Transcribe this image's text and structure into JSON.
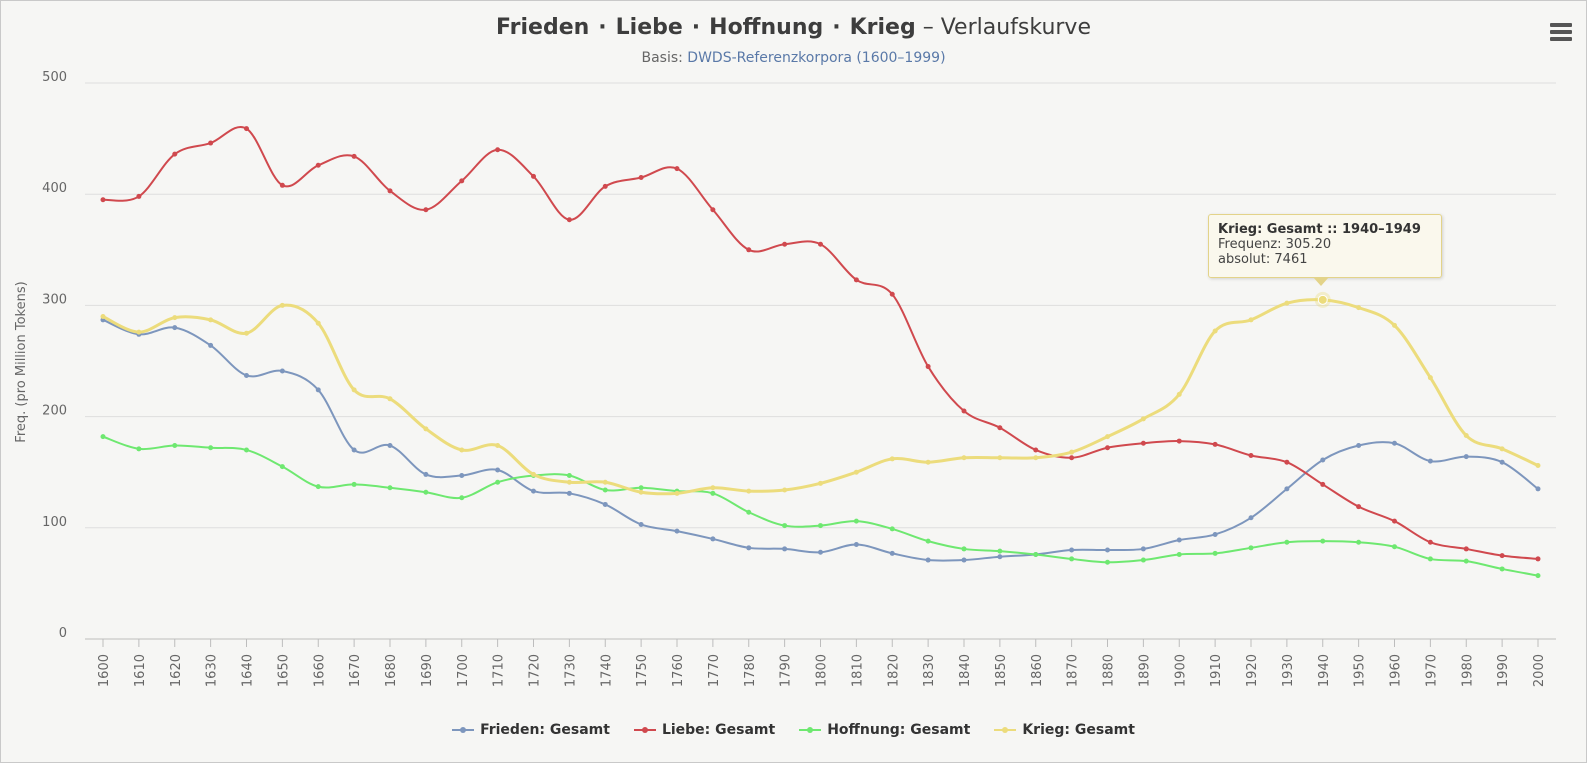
{
  "title": {
    "w1": "Frieden",
    "w2": "Liebe",
    "w3": "Hoffnung",
    "w4": "Krieg",
    "dot": "·",
    "suffix": "– Verlaufskurve"
  },
  "subtitle": {
    "prefix": "Basis: ",
    "link": "DWDS-Referenzkorpora (1600–1999)"
  },
  "menu_icon": "hamburger-menu-icon",
  "tooltip": {
    "header": "Krieg: Gesamt :: 1940–1949",
    "line1": "Frequenz: 305.20",
    "line2": "absolut: 7461"
  },
  "chart_data": {
    "type": "line",
    "ylabel": "Freq. (pro Million Tokens)",
    "xlabel": "",
    "ylim": [
      0,
      500
    ],
    "yticks": [
      0,
      100,
      200,
      300,
      400,
      500
    ],
    "x": [
      1600,
      1610,
      1620,
      1630,
      1640,
      1650,
      1660,
      1670,
      1680,
      1690,
      1700,
      1710,
      1720,
      1730,
      1740,
      1750,
      1760,
      1770,
      1780,
      1790,
      1800,
      1810,
      1820,
      1830,
      1840,
      1850,
      1860,
      1870,
      1880,
      1890,
      1900,
      1910,
      1920,
      1930,
      1940,
      1950,
      1960,
      1970,
      1980,
      1990,
      2000
    ],
    "grid": true,
    "legend_position": "bottom",
    "series": [
      {
        "name": "Frieden: Gesamt",
        "color": "#7d96bd",
        "values": [
          287,
          274,
          280,
          264,
          237,
          241,
          224,
          170,
          174,
          148,
          147,
          152,
          133,
          131,
          121,
          103,
          97,
          90,
          82,
          81,
          78,
          85,
          77,
          71,
          71,
          74,
          76,
          80,
          80,
          81,
          89,
          94,
          109,
          135,
          161,
          174,
          176,
          160,
          164,
          159,
          135
        ]
      },
      {
        "name": "Liebe: Gesamt",
        "color": "#d0494e",
        "values": [
          395,
          398,
          436,
          446,
          459,
          408,
          426,
          434,
          403,
          386,
          412,
          440,
          416,
          377,
          407,
          415,
          423,
          386,
          350,
          355,
          355,
          323,
          310,
          245,
          205,
          190,
          170,
          163,
          172,
          176,
          178,
          175,
          165,
          159,
          139,
          119,
          106,
          87,
          81,
          75,
          72
        ]
      },
      {
        "name": "Hoffnung: Gesamt",
        "color": "#6ee870",
        "values": [
          182,
          171,
          174,
          172,
          170,
          155,
          137,
          139,
          136,
          132,
          127,
          141,
          147,
          147,
          134,
          136,
          133,
          131,
          114,
          102,
          102,
          106,
          99,
          88,
          81,
          79,
          76,
          72,
          69,
          71,
          76,
          77,
          82,
          87,
          88,
          87,
          83,
          72,
          70,
          63,
          57
        ]
      },
      {
        "name": "Krieg: Gesamt",
        "color": "#ecdc7c",
        "values": [
          290,
          276,
          289,
          287,
          275,
          300,
          284,
          224,
          216,
          189,
          170,
          174,
          148,
          141,
          141,
          132,
          131,
          136,
          133,
          134,
          140,
          150,
          162,
          159,
          163,
          163,
          163,
          168,
          182,
          198,
          220,
          277,
          287,
          302,
          305,
          298,
          282,
          235,
          183,
          171,
          156
        ]
      }
    ]
  }
}
